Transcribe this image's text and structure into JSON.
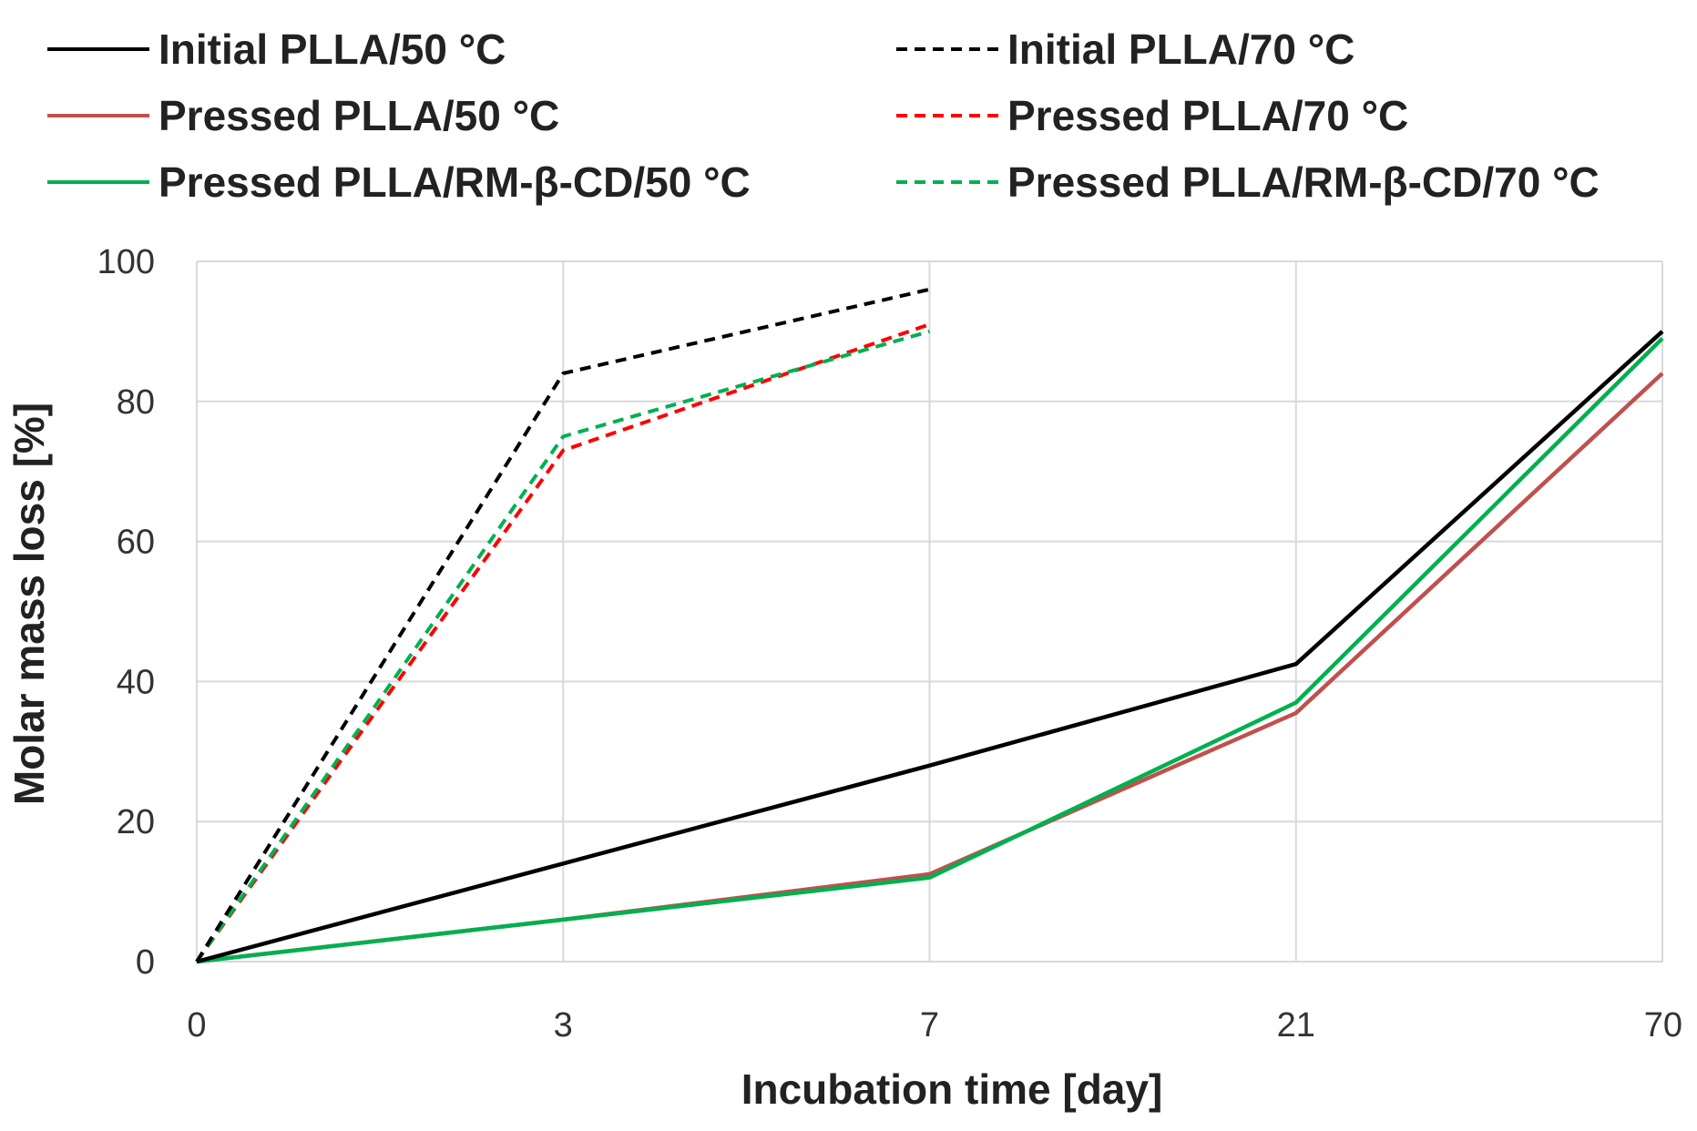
{
  "chart_data": {
    "type": "line",
    "title": "",
    "xlabel": "Incubation time [day]",
    "ylabel": "Molar mass loss [%]",
    "categories": [
      "0",
      "3",
      "7",
      "21",
      "70"
    ],
    "y_ticks": [
      "0",
      "20",
      "40",
      "60",
      "80",
      "100"
    ],
    "ylim": [
      0,
      100
    ],
    "grid": true,
    "legend_position": "top",
    "series": [
      {
        "name": "Initial PLLA/50 °C",
        "color": "#000000",
        "dash": "solid",
        "values": [
          0,
          14,
          28,
          42.5,
          90
        ]
      },
      {
        "name": "Initial PLLA/70 °C",
        "color": "#000000",
        "dash": "dashed",
        "values": [
          0,
          84,
          96,
          null,
          null
        ]
      },
      {
        "name": "Pressed PLLA/50 °C",
        "color": "#c0504d",
        "dash": "solid",
        "values": [
          0,
          6,
          12.5,
          35.5,
          84
        ]
      },
      {
        "name": "Pressed PLLA/70 °C",
        "color": "#ff0000",
        "dash": "dashed",
        "values": [
          0,
          73,
          91,
          null,
          null
        ]
      },
      {
        "name": "Pressed PLLA/RM-β-CD/50 °C",
        "color": "#00b050",
        "dash": "solid",
        "values": [
          0,
          6,
          12,
          37,
          89
        ]
      },
      {
        "name": "Pressed PLLA/RM-β-CD/70 °C",
        "color": "#00b050",
        "dash": "dashed",
        "values": [
          0,
          75,
          90,
          null,
          null
        ]
      }
    ]
  }
}
